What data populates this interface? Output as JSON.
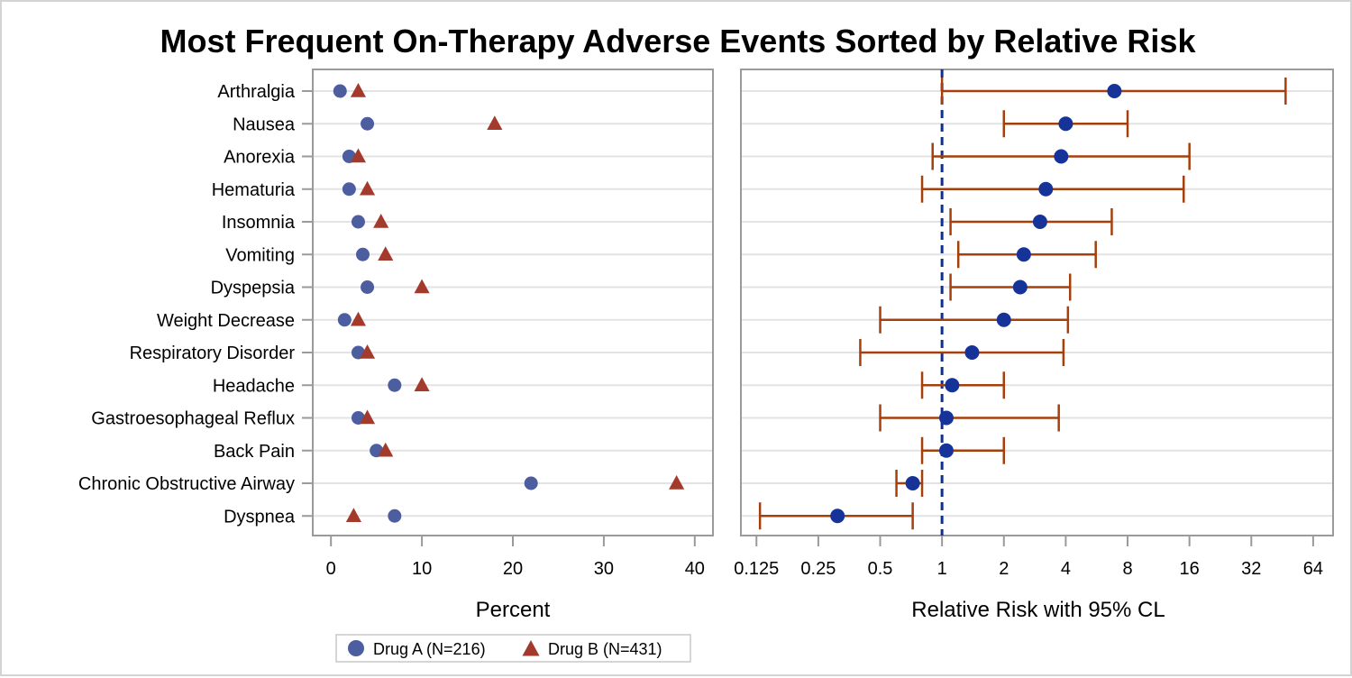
{
  "chart_data": {
    "type": "scatter",
    "title": "Most Frequent On-Therapy Adverse Events Sorted by Relative Risk",
    "categories": [
      "Arthralgia",
      "Nausea",
      "Anorexia",
      "Hematuria",
      "Insomnia",
      "Vomiting",
      "Dyspepsia",
      "Weight Decrease",
      "Respiratory Disorder",
      "Headache",
      "Gastroesophageal Reflux",
      "Back Pain",
      "Chronic Obstructive Airway",
      "Dyspnea"
    ],
    "colors": {
      "drug_a": "#4c5da0",
      "drug_b": "#a33a2c",
      "rr_point": "#16339a",
      "ci_line": "#a5400d",
      "ref_line": "#10308c",
      "gridline": "#e3e3e3",
      "axis": "#9a9a9a"
    },
    "panels": [
      {
        "type": "scatter",
        "xlabel": "Percent",
        "xlim": [
          -2,
          42
        ],
        "xticks": [
          "0",
          "10",
          "20",
          "30",
          "40"
        ],
        "series": [
          {
            "name": "Drug A (N=216)",
            "marker": "circle",
            "values": [
              1,
              4,
              2,
              2,
              3,
              3.5,
              4,
              1.5,
              3,
              7,
              3,
              5,
              22,
              7
            ]
          },
          {
            "name": "Drug B (N=431)",
            "marker": "triangle",
            "values": [
              3,
              18,
              3,
              4,
              5.5,
              6,
              10,
              3,
              4,
              10,
              4,
              6,
              38,
              2.5
            ]
          }
        ]
      },
      {
        "type": "scatter",
        "xlabel": "Relative Risk with 95% CL",
        "xscale": "log2",
        "xlim": [
          0.105,
          80
        ],
        "xticks": [
          "0.125",
          "0.25",
          "0.5",
          "1",
          "2",
          "4",
          "8",
          "16",
          "32",
          "64"
        ],
        "reference_line": 1,
        "relative_risk": [
          6.9,
          4.0,
          3.8,
          3.2,
          3.0,
          2.5,
          2.4,
          2.0,
          1.4,
          1.12,
          1.05,
          1.05,
          0.72,
          0.31
        ],
        "lower_cl": [
          1.0,
          2.0,
          0.9,
          0.8,
          1.1,
          1.2,
          1.1,
          0.5,
          0.4,
          0.8,
          0.5,
          0.8,
          0.6,
          0.13
        ],
        "upper_cl": [
          47,
          8,
          16,
          15,
          6.7,
          5.6,
          4.2,
          4.1,
          3.9,
          2.0,
          3.7,
          2.0,
          0.8,
          0.72
        ]
      }
    ],
    "legend": {
      "position": "bottom-left",
      "entries": [
        "Drug A (N=216)",
        "Drug B (N=431)"
      ]
    },
    "grid": "horizontal"
  }
}
